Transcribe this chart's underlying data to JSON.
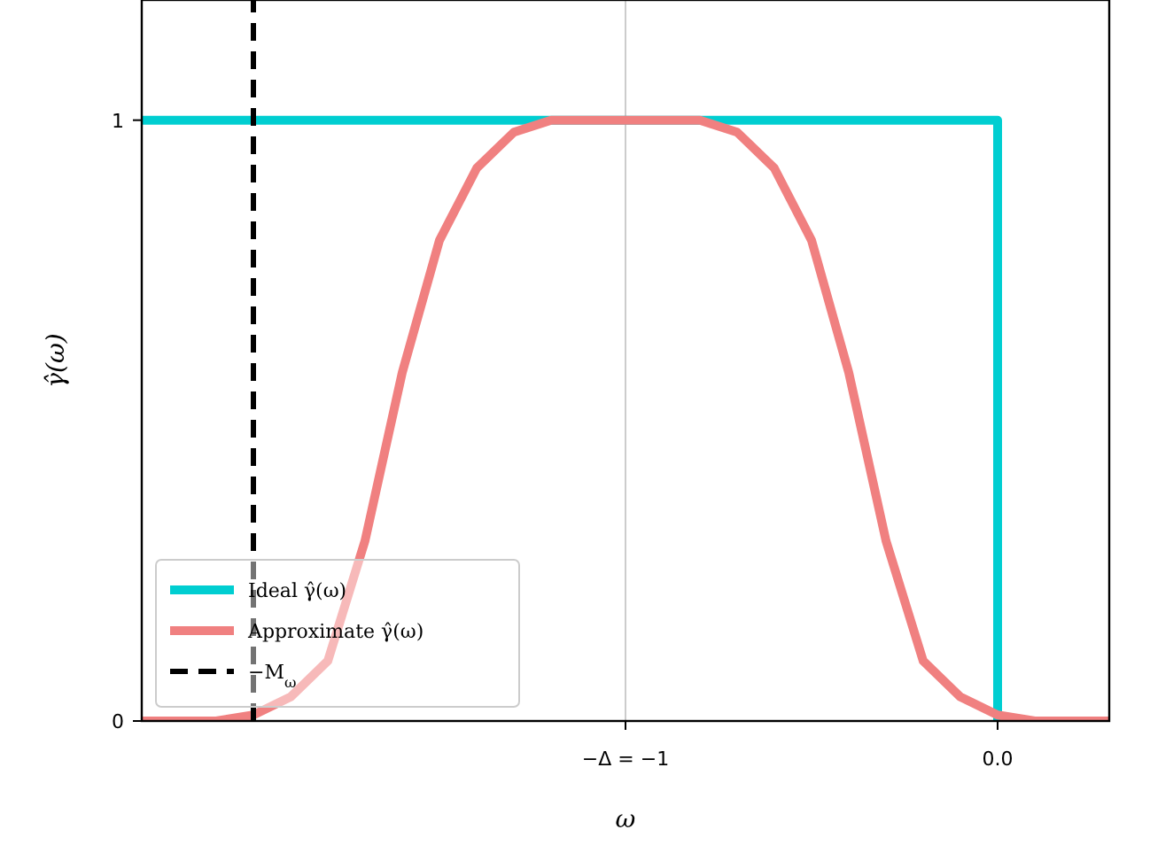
{
  "chart_data": {
    "type": "line",
    "xlabel": "ω",
    "ylabel": "γ̂(ω)",
    "xlim": [
      -2.3,
      0.3
    ],
    "ylim": [
      0,
      1.2
    ],
    "xticks": [
      {
        "value": -1,
        "label": "−Δ = −1"
      },
      {
        "value": 0,
        "label": "0.0"
      }
    ],
    "yticks": [
      0,
      1
    ],
    "grid": false,
    "legend": "bottom left",
    "line_style": "solid",
    "marker": "none",
    "ref_lines": [
      {
        "axis": "x",
        "value": -1,
        "color": "#cccccc"
      }
    ],
    "series": [
      {
        "name": "Ideal γ̂(ω)",
        "color": "#00ced1",
        "x": [
          -2.3,
          0,
          0
        ],
        "values": [
          1,
          1,
          0
        ]
      },
      {
        "name": "Approximate γ̂(ω)",
        "color": "#f08080",
        "x": [
          -2.3,
          -2.2,
          -2.1,
          -2,
          -1.9,
          -1.8,
          -1.7,
          -1.6,
          -1.5,
          -1.4,
          -1.3,
          -1.2,
          -1.1,
          -1,
          -0.9,
          -0.8,
          -0.7,
          -0.6,
          -0.5,
          -0.4,
          -0.3,
          -0.2,
          -0.1,
          0,
          0.1,
          0.2,
          0.3
        ],
        "values": [
          0,
          0,
          0,
          0.01,
          0.04,
          0.1,
          0.3,
          0.58,
          0.8,
          0.92,
          0.98,
          1,
          1,
          1,
          1,
          1,
          0.98,
          0.92,
          0.8,
          0.58,
          0.3,
          0.1,
          0.04,
          0.01,
          0,
          0,
          0
        ]
      },
      {
        "name": "−M$_{ω}$",
        "color": "#000000",
        "line_style": "dashed",
        "x": [
          -2,
          -2
        ],
        "values": [
          0,
          1.2
        ]
      }
    ]
  }
}
